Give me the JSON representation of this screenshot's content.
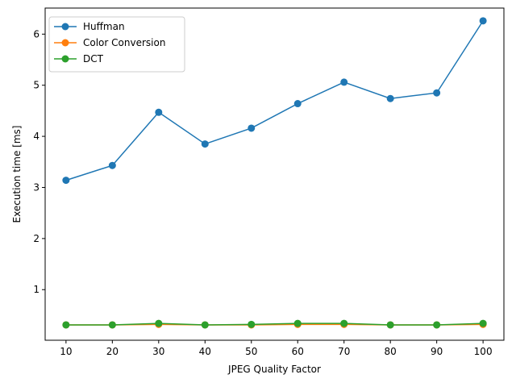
{
  "chart_data": {
    "type": "line",
    "title": "",
    "xlabel": "JPEG Quality Factor",
    "ylabel": "Execution time [ms]",
    "x": [
      10,
      20,
      30,
      40,
      50,
      60,
      70,
      80,
      90,
      100
    ],
    "xticks": [
      "10",
      "20",
      "30",
      "40",
      "50",
      "60",
      "70",
      "80",
      "90",
      "100"
    ],
    "yticks": [
      "1",
      "2",
      "3",
      "4",
      "5",
      "6"
    ],
    "xlim": [
      5.5,
      104.5
    ],
    "ylim": [
      0.01,
      6.51
    ],
    "grid": false,
    "legend_position": "upper-left",
    "series": [
      {
        "name": "Huffman",
        "color": "#1f77b4",
        "values": [
          3.14,
          3.43,
          4.47,
          3.85,
          4.16,
          4.64,
          5.06,
          4.74,
          4.85,
          6.26
        ]
      },
      {
        "name": "Color Conversion",
        "color": "#ff7f0e",
        "values": [
          0.31,
          0.31,
          0.32,
          0.31,
          0.31,
          0.32,
          0.32,
          0.31,
          0.31,
          0.32
        ]
      },
      {
        "name": "DCT",
        "color": "#2ca02c",
        "values": [
          0.31,
          0.31,
          0.34,
          0.31,
          0.32,
          0.34,
          0.34,
          0.31,
          0.31,
          0.34
        ]
      }
    ]
  }
}
